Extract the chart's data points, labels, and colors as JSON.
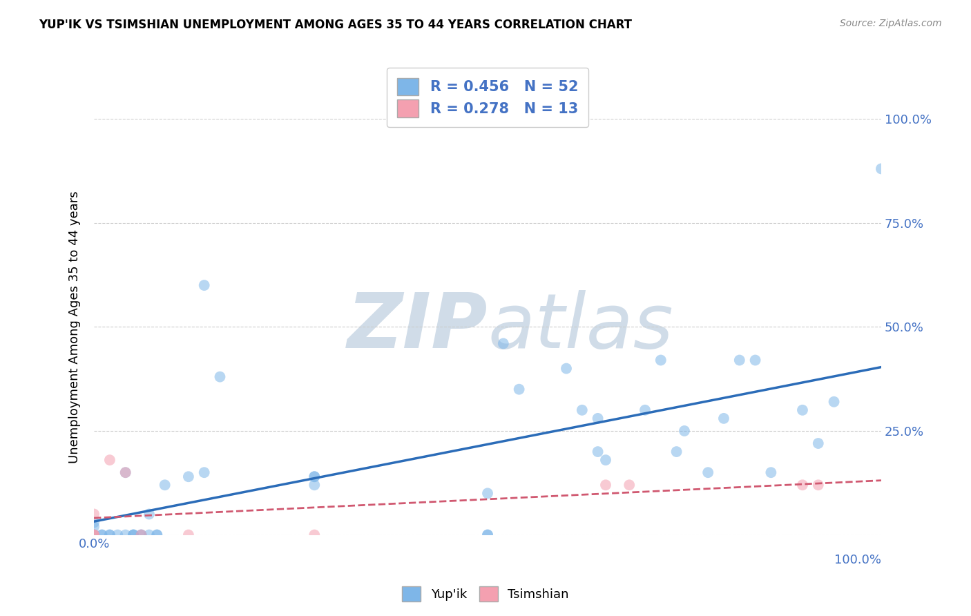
{
  "title": "YUP'IK VS TSIMSHIAN UNEMPLOYMENT AMONG AGES 35 TO 44 YEARS CORRELATION CHART",
  "source": "Source: ZipAtlas.com",
  "ylabel": "Unemployment Among Ages 35 to 44 years",
  "xlim": [
    0.0,
    1.0
  ],
  "ylim": [
    0.0,
    1.0
  ],
  "xticks": [
    0.0,
    0.25,
    0.5,
    0.75,
    1.0
  ],
  "yticks": [
    0.0,
    0.25,
    0.5,
    0.75,
    1.0
  ],
  "xticklabels_left": [
    "0.0%",
    "",
    "",
    "",
    ""
  ],
  "xticklabels_right": [
    "",
    "",
    "",
    "",
    "100.0%"
  ],
  "yticklabels_right": [
    "",
    "25.0%",
    "50.0%",
    "75.0%",
    "100.0%"
  ],
  "yup_ik_color": "#7EB6E8",
  "tsimshian_color": "#F4A0B0",
  "yup_ik_line_color": "#2B6CB8",
  "tsimshian_line_color": "#D05870",
  "background_color": "#ffffff",
  "watermark_zip": "ZIP",
  "watermark_atlas": "atlas",
  "watermark_color": "#d0dce8",
  "R_yupik": 0.456,
  "N_yupik": 52,
  "R_tsimshian": 0.278,
  "N_tsimshian": 13,
  "yup_ik_x": [
    0.0,
    0.0,
    0.0,
    0.0,
    0.0,
    0.01,
    0.01,
    0.02,
    0.02,
    0.03,
    0.04,
    0.04,
    0.05,
    0.05,
    0.05,
    0.06,
    0.06,
    0.07,
    0.07,
    0.08,
    0.08,
    0.09,
    0.12,
    0.14,
    0.14,
    0.16,
    0.28,
    0.28,
    0.28,
    0.5,
    0.5,
    0.5,
    0.52,
    0.54,
    0.6,
    0.62,
    0.64,
    0.64,
    0.65,
    0.7,
    0.72,
    0.74,
    0.75,
    0.78,
    0.8,
    0.82,
    0.84,
    0.86,
    0.9,
    0.92,
    0.94,
    1.0
  ],
  "yup_ik_y": [
    0.0,
    0.0,
    0.0,
    0.02,
    0.03,
    0.0,
    0.0,
    0.0,
    0.0,
    0.0,
    0.0,
    0.15,
    0.0,
    0.0,
    0.0,
    0.0,
    0.0,
    0.0,
    0.05,
    0.0,
    0.0,
    0.12,
    0.14,
    0.6,
    0.15,
    0.38,
    0.12,
    0.14,
    0.14,
    0.1,
    0.0,
    0.0,
    0.46,
    0.35,
    0.4,
    0.3,
    0.28,
    0.2,
    0.18,
    0.3,
    0.42,
    0.2,
    0.25,
    0.15,
    0.28,
    0.42,
    0.42,
    0.15,
    0.3,
    0.22,
    0.32,
    0.88
  ],
  "tsimshian_x": [
    0.0,
    0.0,
    0.0,
    0.0,
    0.02,
    0.04,
    0.06,
    0.12,
    0.28,
    0.65,
    0.68,
    0.9,
    0.92
  ],
  "tsimshian_y": [
    0.0,
    0.0,
    0.0,
    0.05,
    0.18,
    0.15,
    0.0,
    0.0,
    0.0,
    0.12,
    0.12,
    0.12,
    0.12
  ],
  "marker_size": 130,
  "alpha": 0.55,
  "grid_color": "#cccccc",
  "tick_color": "#4472c4",
  "legend_text_color": "#4472c4",
  "legend_label_yupik": "Yup'ik",
  "legend_label_tsimshian": "Tsimshian"
}
